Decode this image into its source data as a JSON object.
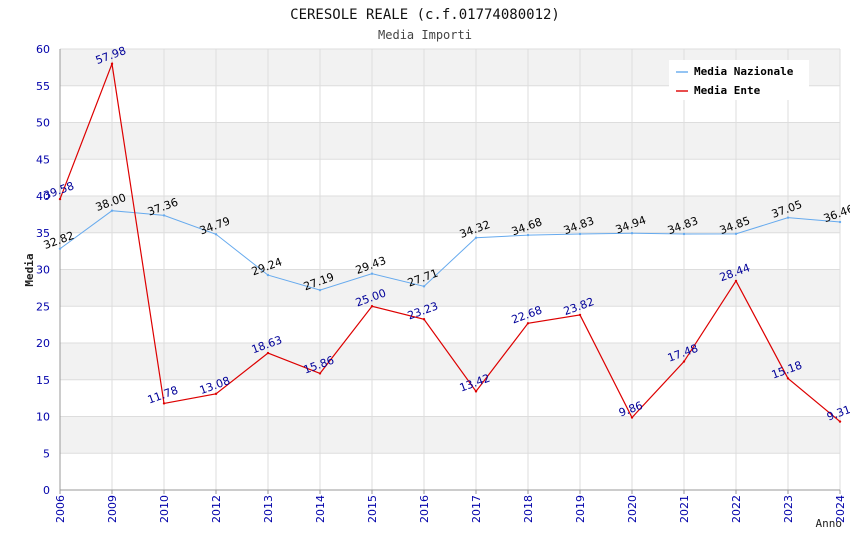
{
  "chart_data": {
    "type": "line",
    "title": "CERESOLE REALE (c.f.01774080012)",
    "subtitle": "Media Importi",
    "xlabel": "Anno",
    "ylabel": "Media",
    "ylim": [
      0,
      60
    ],
    "ytick_step": 5,
    "grid": true,
    "legend_position": "top-right",
    "categories": [
      "2006",
      "2009",
      "2010",
      "2012",
      "2013",
      "2014",
      "2015",
      "2016",
      "2017",
      "2018",
      "2019",
      "2020",
      "2021",
      "2022",
      "2023",
      "2024"
    ],
    "series": [
      {
        "name": "Media Nazionale",
        "color": "#66aaee",
        "label_color": "#000000",
        "values": [
          32.82,
          38.0,
          37.36,
          34.79,
          29.24,
          27.19,
          29.43,
          27.71,
          34.32,
          34.68,
          34.83,
          34.94,
          34.83,
          34.85,
          37.05,
          36.46
        ]
      },
      {
        "name": "Media Ente",
        "color": "#dd0000",
        "label_color": "#000099",
        "values": [
          39.58,
          57.98,
          11.78,
          13.08,
          18.63,
          15.86,
          25.0,
          23.23,
          13.42,
          22.68,
          23.82,
          9.86,
          17.48,
          28.44,
          15.18,
          9.31
        ]
      }
    ]
  },
  "colors": {
    "band": "#f2f2f2",
    "grid": "#dddddd",
    "axis_tick": "#0000aa"
  }
}
